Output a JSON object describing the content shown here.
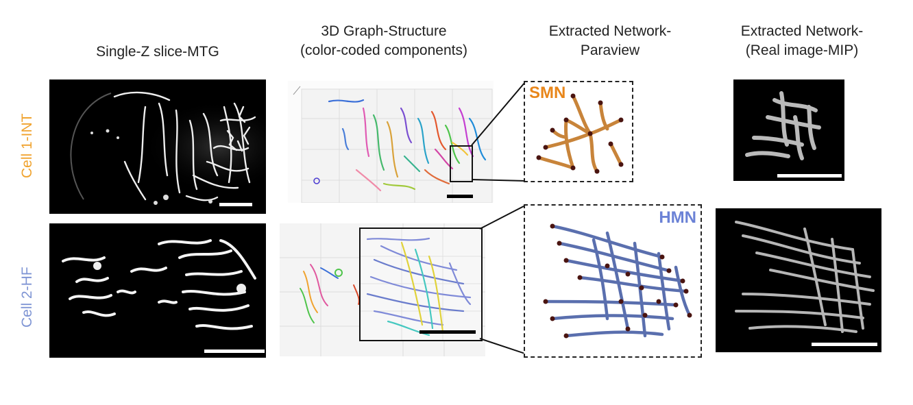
{
  "columns": {
    "col1": [
      "Single-Z slice-MTG"
    ],
    "col2": [
      "3D Graph-Structure",
      "(color-coded components)"
    ],
    "col3": [
      "Extracted Network-",
      "Paraview"
    ],
    "col4": [
      "Extracted Network-",
      "(Real image-MIP)"
    ]
  },
  "rows": {
    "row1": {
      "label": "Cell 1-INT",
      "network": "SMN"
    },
    "row2": {
      "label": "Cell 2-HF",
      "network": "HMN"
    }
  },
  "colors": {
    "cell1_label": "#f0a32f",
    "cell2_label": "#7f95d4",
    "smn": "#e8861a",
    "hmn": "#6b82d6",
    "smn_tube": "#c8843a",
    "hmn_tube": "#5a6fae",
    "node": "#4a1410"
  }
}
